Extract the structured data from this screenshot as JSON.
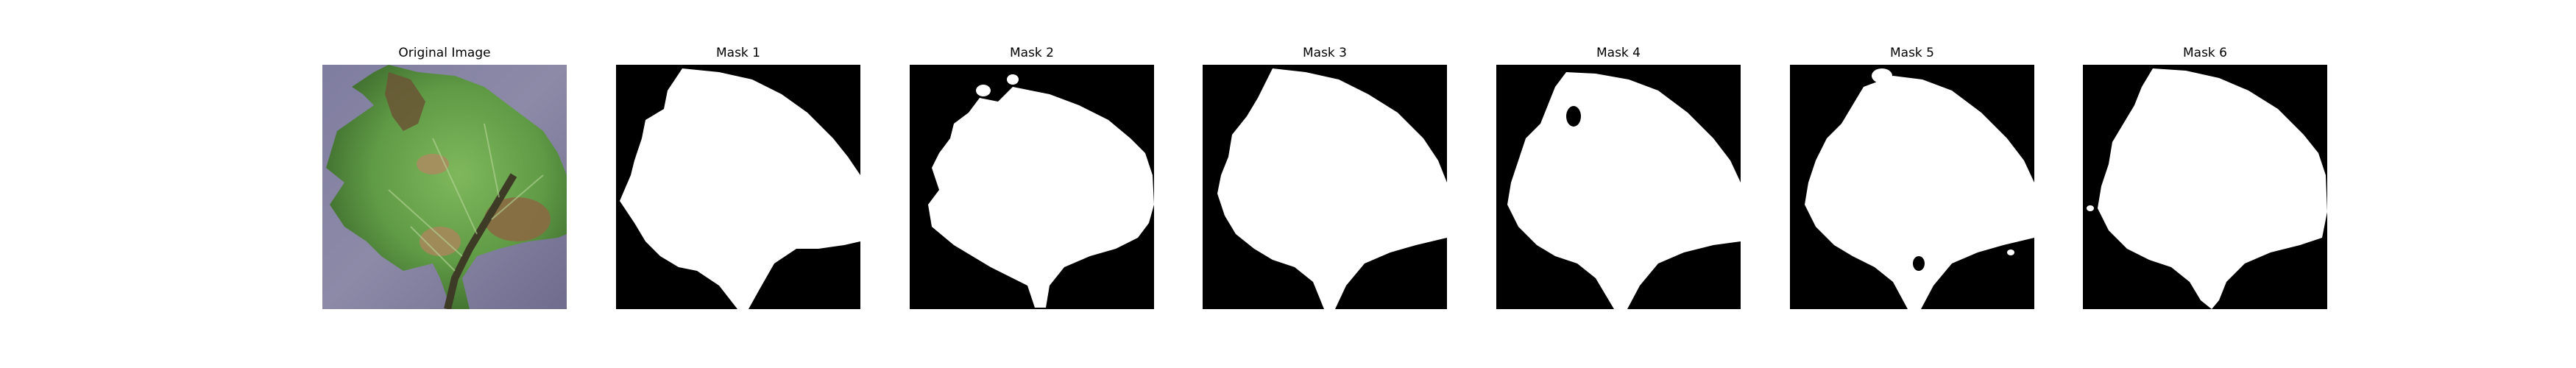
{
  "figure": {
    "panels": [
      {
        "title": "Original Image",
        "kind": "photo",
        "subject": "diseased tomato leaf"
      },
      {
        "title": "Mask 1",
        "kind": "binary-mask"
      },
      {
        "title": "Mask 2",
        "kind": "binary-mask"
      },
      {
        "title": "Mask 3",
        "kind": "binary-mask"
      },
      {
        "title": "Mask 4",
        "kind": "binary-mask"
      },
      {
        "title": "Mask 5",
        "kind": "binary-mask"
      },
      {
        "title": "Mask 6",
        "kind": "binary-mask"
      }
    ],
    "colors": {
      "mask_background": "#000000",
      "mask_foreground": "#ffffff",
      "photo_background": "#8a87a6",
      "leaf_green": "#5f9a45",
      "leaf_dark": "#2f5525",
      "lesion_brown": "#8a6a43"
    }
  }
}
